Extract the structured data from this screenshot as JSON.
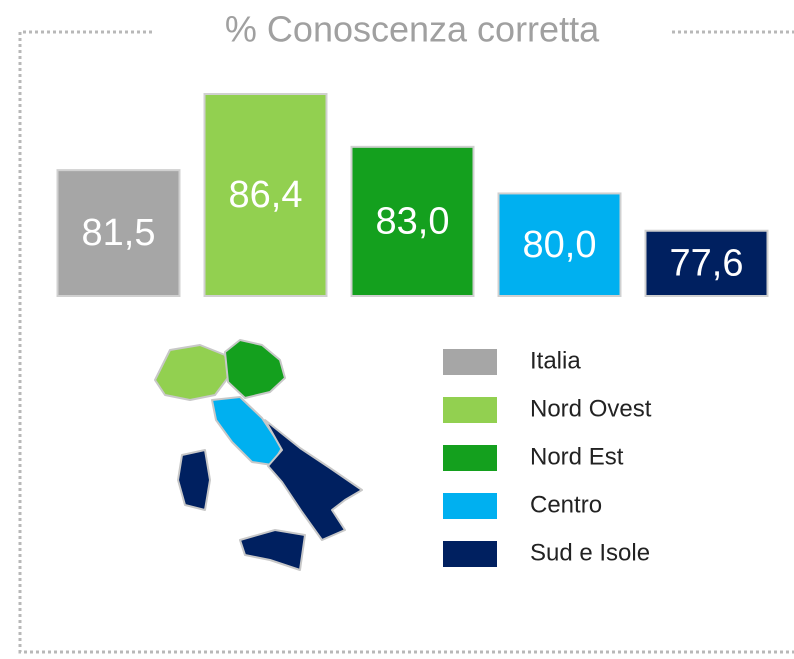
{
  "chart_data": {
    "type": "bar",
    "title": "% Conoscenza corretta",
    "categories": [
      "Italia",
      "Nord Ovest",
      "Nord Est",
      "Centro",
      "Sud e Isole"
    ],
    "values": [
      81.5,
      86.4,
      83.0,
      80.0,
      77.6
    ],
    "value_labels": [
      "81,5",
      "86,4",
      "83,0",
      "80,0",
      "77,6"
    ],
    "colors": [
      "#a6a6a6",
      "#92d050",
      "#14a01e",
      "#00b0f0",
      "#002060"
    ],
    "ylim": [
      73.4,
      86.4
    ]
  }
}
